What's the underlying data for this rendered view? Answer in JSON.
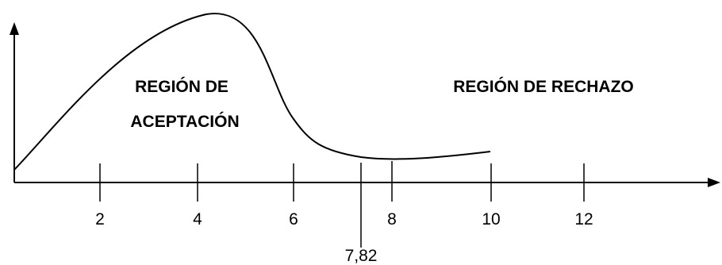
{
  "regions": {
    "acceptance_line1": "REGIÓN DE",
    "acceptance_line2": "ACEPTACIÓN",
    "rejection": "REGIÓN DE RECHAZO"
  },
  "x_ticks": [
    "2",
    "4",
    "6",
    "8",
    "10",
    "12"
  ],
  "critical_value": "7,82",
  "colors": {
    "line": "#000000",
    "background": "#ffffff"
  }
}
